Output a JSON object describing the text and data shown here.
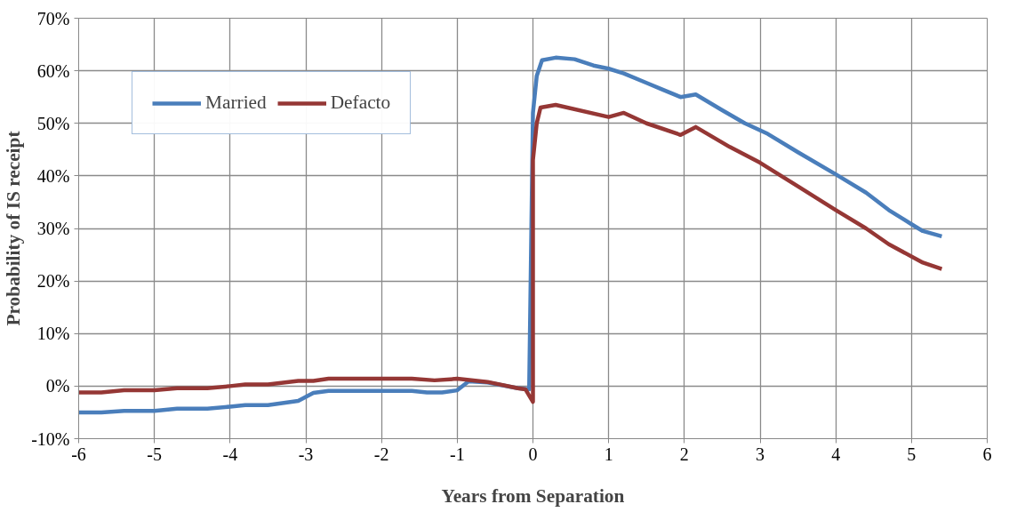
{
  "chart_data": {
    "type": "line",
    "xlabel": "Years from Separation",
    "ylabel": "Probability of IS receipt",
    "xlim": [
      -6,
      6
    ],
    "xticks": [
      -6,
      -5,
      -4,
      -3,
      -2,
      -1,
      0,
      1,
      2,
      3,
      4,
      5,
      6
    ],
    "ylim": [
      -10,
      70
    ],
    "yticks": [
      {
        "value": -10,
        "label": "-10%"
      },
      {
        "value": 0,
        "label": "0%"
      },
      {
        "value": 10,
        "label": "10%"
      },
      {
        "value": 20,
        "label": "20%"
      },
      {
        "value": 30,
        "label": "30%"
      },
      {
        "value": 40,
        "label": "40%"
      },
      {
        "value": 50,
        "label": "50%"
      },
      {
        "value": 60,
        "label": "60%"
      },
      {
        "value": 70,
        "label": "70%"
      }
    ],
    "grid": true,
    "legend": "top left",
    "marker": "none",
    "line_style": "solid",
    "series": [
      {
        "name": "Married",
        "color": "#4a7ebb",
        "x": [
          -6,
          -5.7,
          -5.4,
          -5.0,
          -4.7,
          -4.3,
          -4.0,
          -3.8,
          -3.5,
          -3.1,
          -2.9,
          -2.7,
          -2.0,
          -1.6,
          -1.4,
          -1.2,
          -1.0,
          -0.85,
          -0.6,
          -0.2,
          -0.05,
          0,
          0.05,
          0.12,
          0.3,
          0.55,
          0.8,
          1.0,
          1.2,
          1.5,
          1.7,
          1.95,
          2.15,
          2.5,
          2.8,
          3.1,
          3.5,
          4.0,
          4.4,
          4.7,
          5.0,
          5.15,
          5.4
        ],
        "values": [
          -5.0,
          -5.0,
          -4.7,
          -4.7,
          -4.3,
          -4.3,
          -3.9,
          -3.6,
          -3.6,
          -2.8,
          -1.3,
          -0.9,
          -0.9,
          -0.9,
          -1.2,
          -1.2,
          -0.8,
          0.9,
          0.7,
          -0.4,
          -0.6,
          52,
          59,
          62,
          62.5,
          62.2,
          61,
          60.4,
          59.5,
          57.7,
          56.5,
          55,
          55.5,
          52.5,
          50,
          48,
          44.5,
          40.3,
          36.8,
          33.5,
          30.8,
          29.5,
          28.5
        ]
      },
      {
        "name": "Defacto",
        "color": "#953735",
        "x": [
          -6,
          -5.7,
          -5.4,
          -5.0,
          -4.7,
          -4.3,
          -4.0,
          -3.8,
          -3.5,
          -3.1,
          -2.9,
          -2.7,
          -1.6,
          -1.3,
          -1.0,
          -0.6,
          -0.2,
          -0.1,
          0,
          0.0,
          0.05,
          0.1,
          0.3,
          1.0,
          1.2,
          1.5,
          1.95,
          2.15,
          2.6,
          3.0,
          3.5,
          4.0,
          4.4,
          4.7,
          5.15,
          5.4
        ],
        "values": [
          -1.2,
          -1.2,
          -0.8,
          -0.8,
          -0.4,
          -0.4,
          0,
          0.3,
          0.3,
          1.0,
          1.0,
          1.4,
          1.4,
          1.1,
          1.4,
          0.8,
          -0.4,
          -0.6,
          -3,
          43,
          50,
          53,
          53.5,
          51.2,
          52,
          50,
          47.8,
          49.3,
          45.5,
          42.5,
          38,
          33.5,
          30,
          27,
          23.5,
          22.3
        ]
      }
    ]
  }
}
